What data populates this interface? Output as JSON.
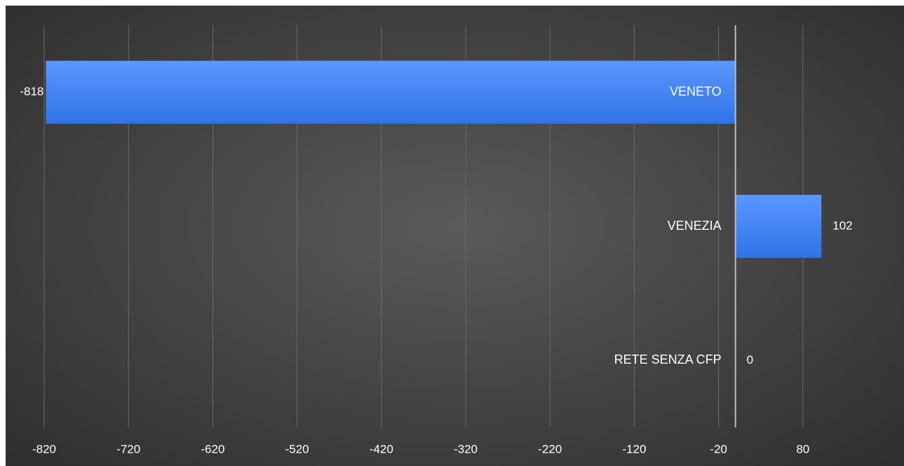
{
  "chart_data": {
    "type": "bar",
    "orientation": "horizontal",
    "title": "",
    "xlabel": "",
    "ylabel": "",
    "categories": [
      "VENETO",
      "VENEZIA",
      "RETE SENZA CFP"
    ],
    "values": [
      -818,
      102,
      0
    ],
    "value_labels": [
      "-818",
      "102",
      "0"
    ],
    "x_ticks": [
      -820,
      -720,
      -620,
      -520,
      -420,
      -320,
      -220,
      -120,
      -20,
      80
    ],
    "xlim": [
      -820,
      180
    ],
    "grid": "vertical",
    "legend": "none",
    "colors": {
      "bar_top": "#5b97ff",
      "bar_bottom": "#2f73e6",
      "gridline": "#6a6a6a",
      "zero_line": "#bdbdbd",
      "text": "#ffffff"
    }
  }
}
